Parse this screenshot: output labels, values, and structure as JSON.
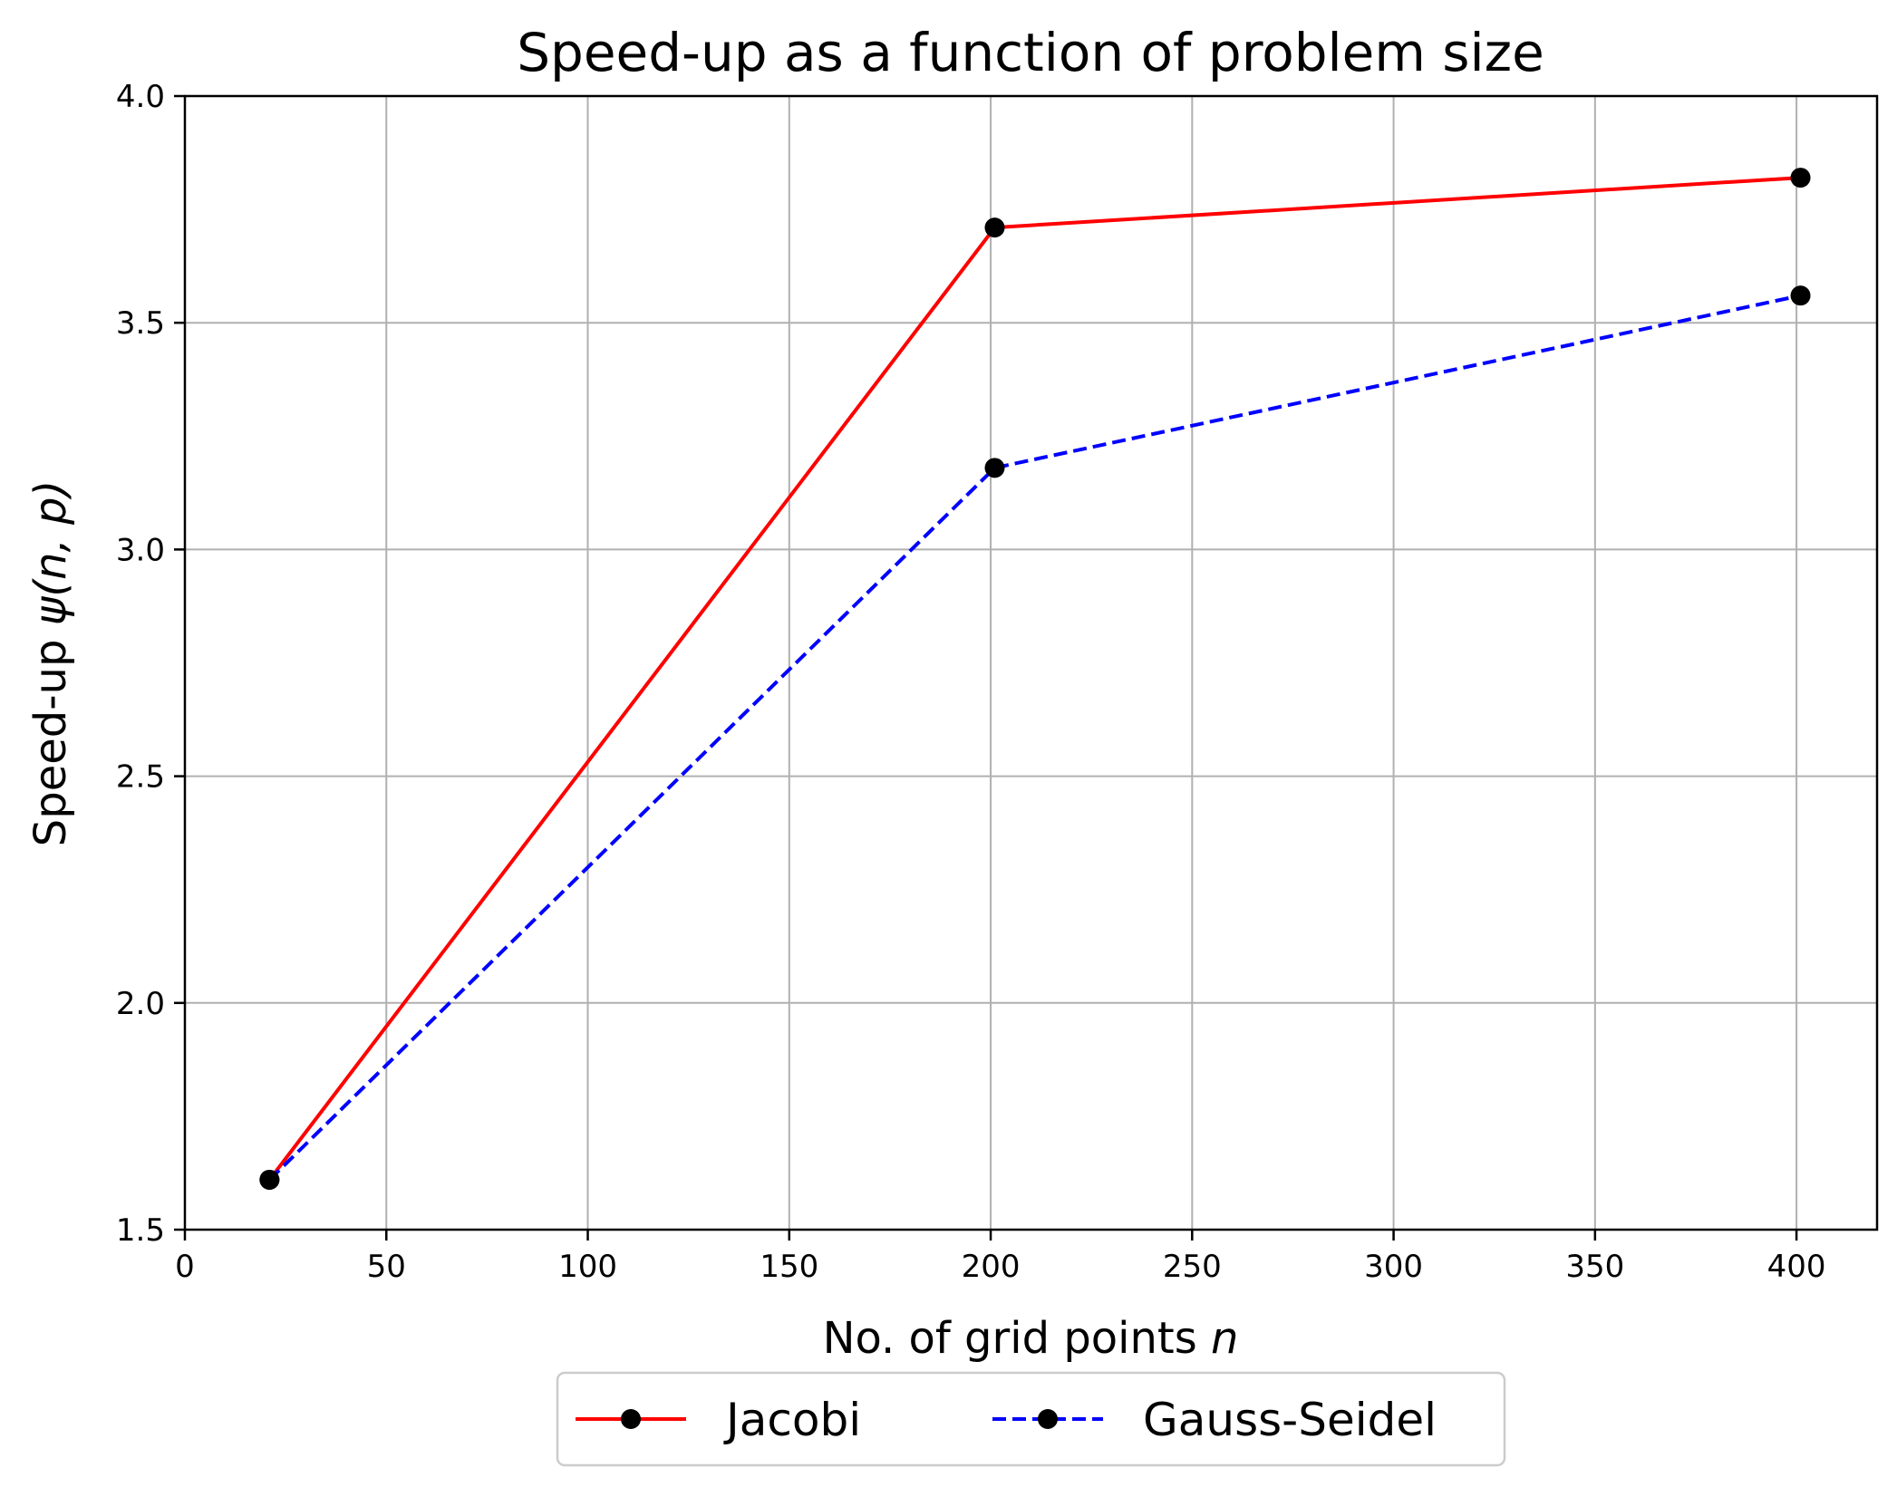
{
  "chart_data": {
    "type": "line",
    "title": "Speed-up as a function of problem size",
    "xlabel_text": "No. of grid points ",
    "xlabel_var": "n",
    "ylabel_text": "Speed-up ",
    "ylabel_var": "ψ(n, p)",
    "xlim": [
      0,
      420
    ],
    "ylim": [
      1.5,
      4.0
    ],
    "x_ticks": [
      0,
      50,
      100,
      150,
      200,
      250,
      300,
      350,
      400
    ],
    "x_tick_labels": [
      "0",
      "50",
      "100",
      "150",
      "200",
      "250",
      "300",
      "350",
      "400"
    ],
    "y_ticks": [
      1.5,
      2.0,
      2.5,
      3.0,
      3.5,
      4.0
    ],
    "y_tick_labels": [
      "1.5",
      "2.0",
      "2.5",
      "3.0",
      "3.5",
      "4.0"
    ],
    "grid": true,
    "legend_position": "below-center",
    "series": [
      {
        "name": "Jacobi",
        "color": "#ff0000",
        "line_style": "solid",
        "marker_color": "#000000",
        "x": [
          21,
          201,
          401
        ],
        "y": [
          1.61,
          3.71,
          3.82
        ]
      },
      {
        "name": "Gauss-Seidel",
        "color": "#0000ff",
        "line_style": "dashed",
        "marker_color": "#000000",
        "x": [
          21,
          201,
          401
        ],
        "y": [
          1.61,
          3.18,
          3.56
        ]
      }
    ]
  }
}
